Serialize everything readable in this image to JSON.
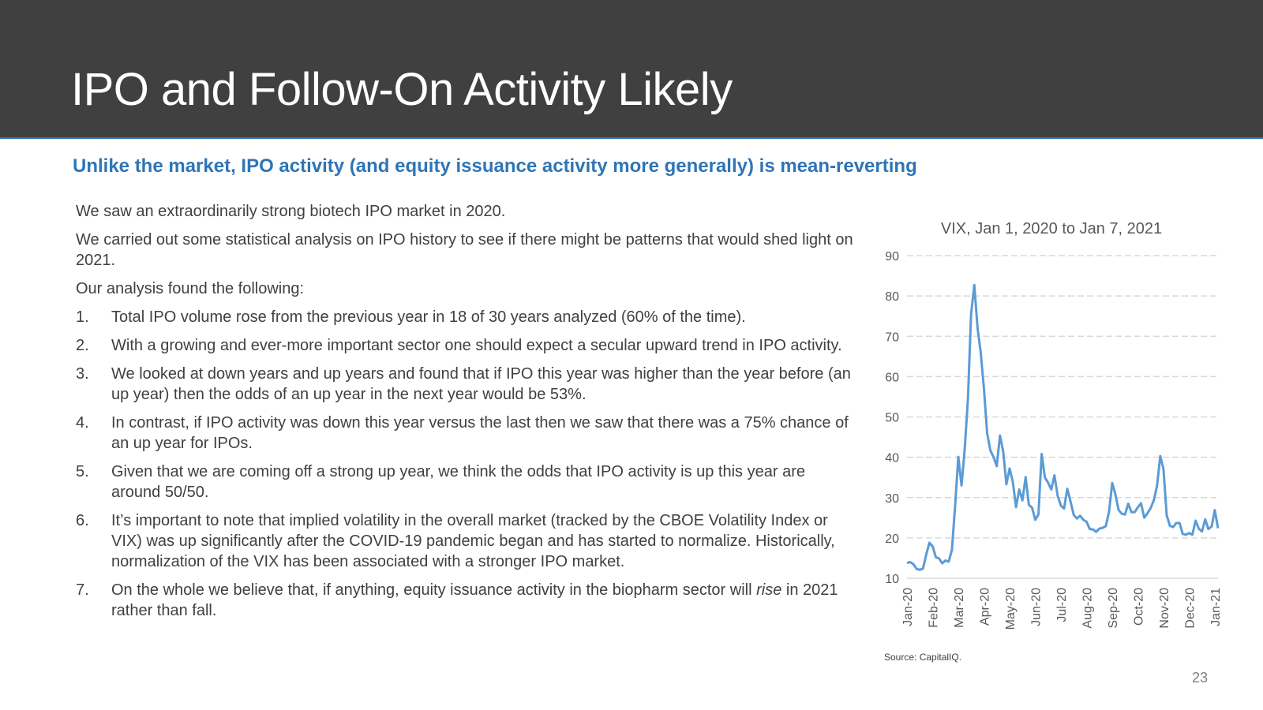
{
  "header": {
    "title": "IPO and Follow-On Activity Likely"
  },
  "subtitle": "Unlike the market, IPO activity (and equity issuance activity more generally) is mean-reverting",
  "body": {
    "paragraphs": [
      "We saw an extraordinarily strong biotech IPO market in 2020.",
      "We carried out some statistical analysis on IPO history to see if there might be patterns that would shed light on 2021.",
      "Our analysis found the following:"
    ],
    "list": [
      {
        "number": "1.",
        "text": [
          "Total IPO volume rose from the previous year in 18 of 30 years analyzed (60% of the time)."
        ]
      },
      {
        "number": "2.",
        "text": [
          "With a growing and ever-more important sector one should expect a secular upward trend in IPO activity."
        ]
      },
      {
        "number": "3.",
        "text": [
          "We looked at down years and up years and found that if IPO this year was higher than the year before (an up year) then the odds of an up year in the next year would be 53%."
        ]
      },
      {
        "number": "4.",
        "text": [
          "In contrast, if IPO activity was down this year versus the last then we saw that there was a 75% chance of an up year for IPOs."
        ]
      },
      {
        "number": "5.",
        "text": [
          "Given that we are coming off a strong up year, we think the odds that IPO activity is up this year are around 50/50."
        ]
      },
      {
        "number": "6.",
        "text": [
          "It’s important to note that implied volatility in the overall market (tracked by the CBOE Volatility Index or VIX) was up significantly after the COVID-19 pandemic began and has started to normalize. Historically, normalization of the VIX has been associated with a stronger IPO market."
        ]
      },
      {
        "number": "7.",
        "text": [
          "On the whole we believe that, if anything, equity issuance activity in the biopharm sector will ",
          "rise",
          " in 2021 rather than fall."
        ]
      }
    ]
  },
  "chart_data": {
    "type": "line",
    "title": "VIX, Jan 1, 2020 to Jan 7, 2021",
    "categories": [
      "Jan-20",
      null,
      null,
      null,
      null,
      null,
      null,
      null,
      "Feb-20",
      null,
      null,
      null,
      null,
      null,
      null,
      null,
      "Mar-20",
      null,
      null,
      null,
      null,
      null,
      null,
      null,
      "Apr-20",
      null,
      null,
      null,
      null,
      null,
      null,
      null,
      "May-20",
      null,
      null,
      null,
      null,
      null,
      null,
      null,
      "Jun-20",
      null,
      null,
      null,
      null,
      null,
      null,
      null,
      "Jul-20",
      null,
      null,
      null,
      null,
      null,
      null,
      null,
      "Aug-20",
      null,
      null,
      null,
      null,
      null,
      null,
      null,
      "Sep-20",
      null,
      null,
      null,
      null,
      null,
      null,
      null,
      "Oct-20",
      null,
      null,
      null,
      null,
      null,
      null,
      null,
      "Nov-20",
      null,
      null,
      null,
      null,
      null,
      null,
      null,
      "Dec-20",
      null,
      null,
      null,
      null,
      null,
      null,
      null,
      "Jan-21",
      null
    ],
    "values": [
      13.8,
      14,
      13.5,
      12.3,
      12.1,
      12.4,
      15.9,
      18.8,
      17.9,
      15.2,
      14.9,
      13.7,
      14.4,
      14.1,
      17,
      27.8,
      40.1,
      33,
      41.9,
      54.5,
      75.5,
      82.7,
      72,
      66,
      57,
      46,
      41.7,
      40,
      37.8,
      45.4,
      41.4,
      33.3,
      37.2,
      34,
      27.6,
      32,
      29.3,
      35.1,
      28.2,
      27.5,
      24.5,
      25.8,
      40.8,
      35,
      33.7,
      32,
      35.5,
      30.4,
      28,
      27.3,
      32.2,
      29,
      25.7,
      24.8,
      25.5,
      24.5,
      24,
      22.2,
      22.1,
      21.5,
      22.3,
      22.5,
      22.9,
      26.4,
      33.6,
      30.8,
      26.9,
      26,
      25.8,
      28.5,
      26.4,
      26.4,
      27.6,
      28.6,
      25,
      26.1,
      27.4,
      29.4,
      33,
      40.3,
      37.1,
      25.6,
      23,
      22.7,
      23.7,
      23.7,
      21,
      20.8,
      21.2,
      20.8,
      24.3,
      22.3,
      21.6,
      24.6,
      22.2,
      22.8,
      26.9,
      22.4
    ],
    "color": "#5b9bd5",
    "ylim": [
      10,
      90
    ],
    "yticks": [
      10,
      20,
      30,
      40,
      50,
      60,
      70,
      80,
      90
    ],
    "grid": true
  },
  "footer": {
    "source": "Source: CapitalIQ.",
    "page": "23"
  }
}
